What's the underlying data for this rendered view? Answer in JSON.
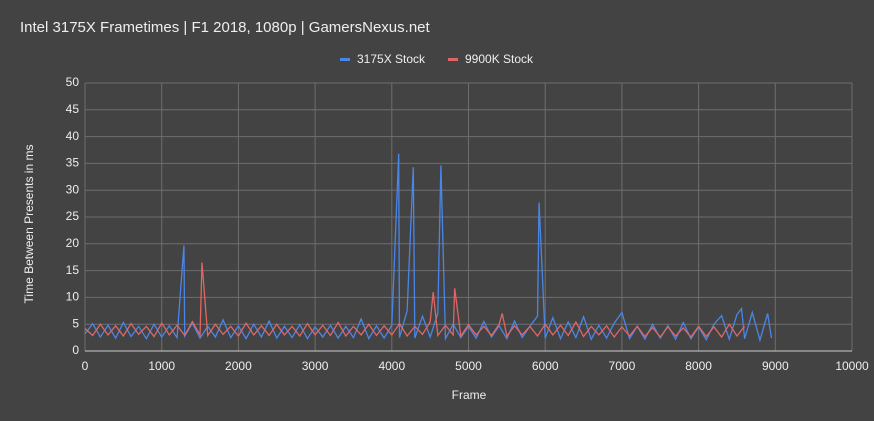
{
  "chart_data": {
    "type": "line",
    "title": "Intel 3175X Frametimes | F1 2018, 1080p | GamersNexus.net",
    "x_label": "Frame",
    "y_label": "Time Between Presents in ms",
    "xlim": [
      0,
      10000
    ],
    "xticks": [
      0,
      1000,
      2000,
      3000,
      4000,
      5000,
      6000,
      7000,
      8000,
      9000,
      10000
    ],
    "ylim": [
      0,
      50
    ],
    "yticks": [
      0,
      5,
      10,
      15,
      20,
      25,
      30,
      35,
      40,
      45,
      50
    ],
    "grid": true,
    "legend": "top",
    "series": [
      {
        "name": "3175X Stock",
        "color": "#4a86e8",
        "x": [
          0,
          100,
          200,
          300,
          400,
          500,
          600,
          700,
          800,
          900,
          1000,
          1100,
          1200,
          1290,
          1300,
          1400,
          1500,
          1600,
          1700,
          1800,
          1900,
          2000,
          2100,
          2200,
          2300,
          2400,
          2500,
          2600,
          2700,
          2800,
          2900,
          3000,
          3100,
          3200,
          3300,
          3400,
          3500,
          3600,
          3700,
          3800,
          3900,
          4000,
          4090,
          4100,
          4200,
          4280,
          4300,
          4400,
          4500,
          4600,
          4640,
          4700,
          4800,
          4900,
          5000,
          5100,
          5200,
          5300,
          5400,
          5500,
          5600,
          5700,
          5800,
          5900,
          5920,
          6000,
          6100,
          6200,
          6300,
          6400,
          6500,
          6600,
          6700,
          6800,
          6900,
          7000,
          7100,
          7200,
          7300,
          7400,
          7500,
          7600,
          7700,
          7800,
          7900,
          8000,
          8100,
          8200,
          8300,
          8400,
          8500,
          8560,
          8600,
          8700,
          8800,
          8900,
          8950
        ],
        "values": [
          3.2,
          5.1,
          2.6,
          4.8,
          2.4,
          5.3,
          2.7,
          4.6,
          2.3,
          5.0,
          2.6,
          4.7,
          2.5,
          19.7,
          2.8,
          5.2,
          2.4,
          4.6,
          2.6,
          5.8,
          2.5,
          4.7,
          2.3,
          5.0,
          2.6,
          5.6,
          2.4,
          4.6,
          2.5,
          4.9,
          2.3,
          4.5,
          2.6,
          4.8,
          2.4,
          4.6,
          2.5,
          6.0,
          2.3,
          4.7,
          2.4,
          4.8,
          36.8,
          2.5,
          7.5,
          34.3,
          2.4,
          6.5,
          2.6,
          7.0,
          34.6,
          2.3,
          5.0,
          2.5,
          4.6,
          2.4,
          5.5,
          2.6,
          4.7,
          2.3,
          5.6,
          2.5,
          4.6,
          6.5,
          27.7,
          2.4,
          6.2,
          2.3,
          5.4,
          2.5,
          6.4,
          2.2,
          4.8,
          2.4,
          5.2,
          7.2,
          2.3,
          4.6,
          2.2,
          5.0,
          2.4,
          4.7,
          2.2,
          5.3,
          2.3,
          4.5,
          2.1,
          5.0,
          6.6,
          2.2,
          6.8,
          7.9,
          2.3,
          7.2,
          2.0,
          7.0,
          2.4
        ]
      },
      {
        "name": "9900K Stock",
        "color": "#e06666",
        "x": [
          0,
          100,
          200,
          300,
          400,
          500,
          600,
          700,
          800,
          900,
          1000,
          1100,
          1200,
          1300,
          1400,
          1500,
          1525,
          1600,
          1700,
          1800,
          1900,
          2000,
          2100,
          2200,
          2300,
          2400,
          2500,
          2600,
          2700,
          2800,
          2900,
          3000,
          3100,
          3200,
          3300,
          3400,
          3500,
          3600,
          3700,
          3800,
          3900,
          4000,
          4100,
          4200,
          4300,
          4400,
          4500,
          4540,
          4600,
          4700,
          4800,
          4820,
          4900,
          5000,
          5100,
          5200,
          5300,
          5400,
          5440,
          5500,
          5600,
          5700,
          5800,
          5900,
          6000,
          6100,
          6200,
          6300,
          6400,
          6500,
          6600,
          6700,
          6800,
          6900,
          7000,
          7100,
          7200,
          7300,
          7400,
          7500,
          7600,
          7700,
          7800,
          7900,
          8000,
          8100,
          8200,
          8300,
          8400,
          8500,
          8600
        ],
        "values": [
          4.2,
          2.9,
          5.0,
          3.0,
          4.7,
          2.8,
          5.1,
          3.1,
          4.6,
          2.7,
          5.2,
          3.0,
          4.8,
          2.9,
          5.5,
          3.0,
          16.5,
          2.9,
          5.0,
          3.1,
          4.6,
          2.8,
          5.2,
          3.0,
          4.7,
          2.9,
          5.0,
          3.0,
          4.6,
          2.8,
          5.1,
          3.0,
          4.8,
          2.9,
          5.3,
          2.8,
          4.6,
          3.0,
          5.0,
          2.9,
          4.7,
          3.0,
          5.1,
          2.8,
          4.6,
          3.1,
          5.4,
          11.0,
          2.9,
          4.8,
          3.0,
          11.7,
          2.8,
          4.9,
          3.0,
          4.6,
          2.9,
          5.0,
          7.0,
          2.8,
          4.7,
          3.0,
          4.6,
          2.8,
          5.0,
          3.0,
          4.8,
          2.9,
          5.4,
          2.7,
          4.6,
          3.0,
          4.7,
          2.6,
          4.5,
          2.8,
          4.6,
          2.7,
          4.4,
          2.6,
          4.5,
          2.8,
          4.3,
          2.6,
          4.6,
          2.7,
          4.5,
          2.6,
          5.0,
          2.8,
          4.6
        ]
      }
    ]
  }
}
